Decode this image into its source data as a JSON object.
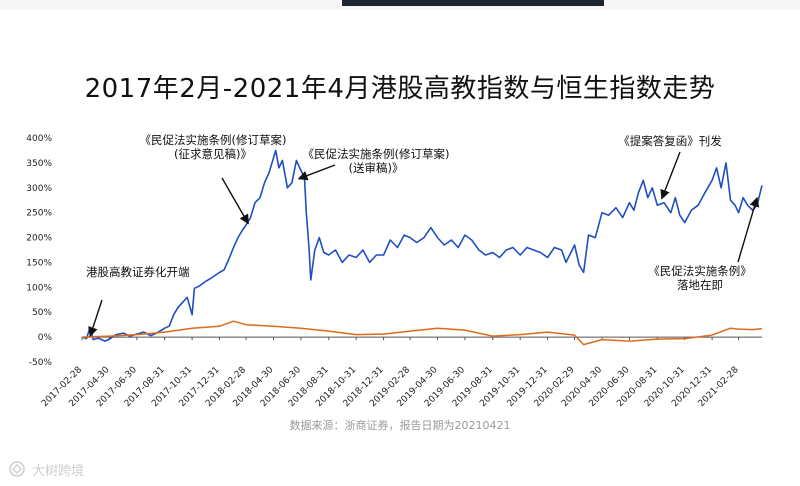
{
  "title": "2017年2月-2021年4月港股高教指数与恒生指数走势",
  "source": "数据来源：浙商证券，报告日期为20210421",
  "watermark": {
    "text": "大树跨境",
    "icon": "watermark-logo-icon"
  },
  "chart_data": {
    "type": "line",
    "title": "2017年2月-2021年4月港股高教指数与恒生指数走势",
    "xlabel": "",
    "ylabel": "",
    "ylim": [
      -50,
      400
    ],
    "yticks": [
      "400%",
      "350%",
      "300%",
      "250%",
      "200%",
      "150%",
      "100%",
      "50%",
      "0%",
      "-50%"
    ],
    "ytick_values": [
      400,
      350,
      300,
      250,
      200,
      150,
      100,
      50,
      0,
      -50
    ],
    "x_tick_labels": [
      "2017-02-28",
      "2017-04-30",
      "2017-06-30",
      "2017-08-31",
      "2017-10-31",
      "2017-12-31",
      "2018-02-28",
      "2018-04-30",
      "2018-06-30",
      "2018-08-31",
      "2018-10-31",
      "2018-12-31",
      "2019-02-28",
      "2019-04-30",
      "2019-06-30",
      "2019-08-31",
      "2019-10-31",
      "2019-12-31",
      "2020-02-29",
      "2020-04-30",
      "2020-06-30",
      "2020-08-31",
      "2020-10-31",
      "2020-12-31",
      "2021-02-28"
    ],
    "grid": false,
    "legend": "none",
    "series": [
      {
        "color": "#1f4fbf",
        "points": [
          [
            "2017-02-28",
            0
          ],
          [
            "2017-03-10",
            -3
          ],
          [
            "2017-03-18",
            20
          ],
          [
            "2017-03-25",
            -5
          ],
          [
            "2017-04-05",
            -2
          ],
          [
            "2017-04-20",
            -8
          ],
          [
            "2017-04-30",
            -4
          ],
          [
            "2017-05-15",
            5
          ],
          [
            "2017-05-31",
            8
          ],
          [
            "2017-06-15",
            2
          ],
          [
            "2017-06-30",
            6
          ],
          [
            "2017-07-15",
            10
          ],
          [
            "2017-07-31",
            3
          ],
          [
            "2017-08-15",
            9
          ],
          [
            "2017-08-31",
            18
          ],
          [
            "2017-09-10",
            22
          ],
          [
            "2017-09-20",
            45
          ],
          [
            "2017-09-30",
            60
          ],
          [
            "2017-10-10",
            70
          ],
          [
            "2017-10-20",
            80
          ],
          [
            "2017-10-31",
            45
          ],
          [
            "2017-11-05",
            98
          ],
          [
            "2017-11-15",
            102
          ],
          [
            "2017-11-30",
            112
          ],
          [
            "2017-12-15",
            120
          ],
          [
            "2017-12-31",
            130
          ],
          [
            "2018-01-10",
            135
          ],
          [
            "2018-01-20",
            155
          ],
          [
            "2018-01-31",
            180
          ],
          [
            "2018-02-10",
            200
          ],
          [
            "2018-02-20",
            215
          ],
          [
            "2018-02-28",
            225
          ],
          [
            "2018-03-10",
            240
          ],
          [
            "2018-03-20",
            270
          ],
          [
            "2018-03-31",
            280
          ],
          [
            "2018-04-10",
            310
          ],
          [
            "2018-04-20",
            330
          ],
          [
            "2018-04-30",
            360
          ],
          [
            "2018-05-05",
            375
          ],
          [
            "2018-05-12",
            340
          ],
          [
            "2018-05-20",
            355
          ],
          [
            "2018-05-31",
            300
          ],
          [
            "2018-06-10",
            310
          ],
          [
            "2018-06-20",
            355
          ],
          [
            "2018-06-30",
            335
          ],
          [
            "2018-07-08",
            320
          ],
          [
            "2018-07-12",
            250
          ],
          [
            "2018-07-18",
            180
          ],
          [
            "2018-07-22",
            115
          ],
          [
            "2018-07-31",
            175
          ],
          [
            "2018-08-10",
            200
          ],
          [
            "2018-08-20",
            170
          ],
          [
            "2018-08-31",
            165
          ],
          [
            "2018-09-15",
            175
          ],
          [
            "2018-09-30",
            150
          ],
          [
            "2018-10-15",
            165
          ],
          [
            "2018-10-31",
            160
          ],
          [
            "2018-11-15",
            175
          ],
          [
            "2018-11-30",
            150
          ],
          [
            "2018-12-15",
            165
          ],
          [
            "2018-12-31",
            165
          ],
          [
            "2019-01-15",
            195
          ],
          [
            "2019-01-31",
            180
          ],
          [
            "2019-02-15",
            205
          ],
          [
            "2019-02-28",
            200
          ],
          [
            "2019-03-15",
            190
          ],
          [
            "2019-03-31",
            200
          ],
          [
            "2019-04-15",
            220
          ],
          [
            "2019-04-30",
            200
          ],
          [
            "2019-05-15",
            185
          ],
          [
            "2019-05-31",
            195
          ],
          [
            "2019-06-15",
            180
          ],
          [
            "2019-06-30",
            205
          ],
          [
            "2019-07-15",
            195
          ],
          [
            "2019-07-31",
            175
          ],
          [
            "2019-08-15",
            165
          ],
          [
            "2019-08-31",
            170
          ],
          [
            "2019-09-15",
            160
          ],
          [
            "2019-09-30",
            175
          ],
          [
            "2019-10-15",
            180
          ],
          [
            "2019-10-31",
            165
          ],
          [
            "2019-11-15",
            180
          ],
          [
            "2019-11-30",
            175
          ],
          [
            "2019-12-15",
            170
          ],
          [
            "2019-12-31",
            160
          ],
          [
            "2020-01-15",
            180
          ],
          [
            "2020-01-31",
            175
          ],
          [
            "2020-02-10",
            150
          ],
          [
            "2020-02-29",
            185
          ],
          [
            "2020-03-10",
            145
          ],
          [
            "2020-03-20",
            130
          ],
          [
            "2020-03-31",
            205
          ],
          [
            "2020-04-15",
            200
          ],
          [
            "2020-04-30",
            250
          ],
          [
            "2020-05-15",
            245
          ],
          [
            "2020-05-31",
            260
          ],
          [
            "2020-06-15",
            240
          ],
          [
            "2020-06-30",
            270
          ],
          [
            "2020-07-10",
            255
          ],
          [
            "2020-07-20",
            290
          ],
          [
            "2020-07-31",
            315
          ],
          [
            "2020-08-10",
            280
          ],
          [
            "2020-08-20",
            300
          ],
          [
            "2020-08-31",
            265
          ],
          [
            "2020-09-15",
            270
          ],
          [
            "2020-09-30",
            250
          ],
          [
            "2020-10-10",
            280
          ],
          [
            "2020-10-20",
            245
          ],
          [
            "2020-10-31",
            230
          ],
          [
            "2020-11-15",
            255
          ],
          [
            "2020-11-30",
            265
          ],
          [
            "2020-12-15",
            290
          ],
          [
            "2020-12-31",
            315
          ],
          [
            "2021-01-10",
            340
          ],
          [
            "2021-01-20",
            300
          ],
          [
            "2021-01-31",
            350
          ],
          [
            "2021-02-10",
            275
          ],
          [
            "2021-02-20",
            265
          ],
          [
            "2021-02-28",
            250
          ],
          [
            "2021-03-10",
            280
          ],
          [
            "2021-03-20",
            265
          ],
          [
            "2021-03-31",
            255
          ],
          [
            "2021-04-10",
            265
          ],
          [
            "2021-04-21",
            305
          ]
        ]
      },
      {
        "color": "#e06a1c",
        "points": [
          [
            "2017-02-28",
            0
          ],
          [
            "2017-04-30",
            2
          ],
          [
            "2017-06-30",
            5
          ],
          [
            "2017-08-31",
            10
          ],
          [
            "2017-10-31",
            18
          ],
          [
            "2017-12-31",
            22
          ],
          [
            "2018-01-31",
            32
          ],
          [
            "2018-02-28",
            25
          ],
          [
            "2018-04-30",
            22
          ],
          [
            "2018-06-30",
            18
          ],
          [
            "2018-08-31",
            12
          ],
          [
            "2018-10-31",
            5
          ],
          [
            "2018-12-31",
            6
          ],
          [
            "2019-02-28",
            12
          ],
          [
            "2019-04-30",
            18
          ],
          [
            "2019-06-30",
            14
          ],
          [
            "2019-08-31",
            2
          ],
          [
            "2019-10-31",
            5
          ],
          [
            "2019-12-31",
            10
          ],
          [
            "2020-02-29",
            4
          ],
          [
            "2020-03-20",
            -15
          ],
          [
            "2020-04-30",
            -5
          ],
          [
            "2020-06-30",
            -8
          ],
          [
            "2020-08-31",
            -4
          ],
          [
            "2020-10-31",
            -3
          ],
          [
            "2020-12-31",
            4
          ],
          [
            "2021-02-10",
            18
          ],
          [
            "2021-02-28",
            16
          ],
          [
            "2021-03-31",
            15
          ],
          [
            "2021-04-21",
            17
          ]
        ]
      }
    ],
    "annotations": [
      {
        "lines": [
          "港股高教证券化开端"
        ],
        "target": [
          "2017-03-18",
          2
        ]
      },
      {
        "lines": [
          "《民促法实施条例(修订草案)",
          "(征求意见稿)》"
        ],
        "target": [
          "2018-03-05",
          228
        ]
      },
      {
        "lines": [
          "《民促法实施条例(修订草案)",
          "(送审稿)》"
        ],
        "target": [
          "2018-06-25",
          318
        ]
      },
      {
        "lines": [
          "《提案答复函》刊发"
        ],
        "target": [
          "2020-09-10",
          278
        ]
      },
      {
        "lines": [
          "《民促法实施条例》",
          "落地在即"
        ],
        "target": [
          "2021-04-10",
          280
        ]
      }
    ]
  }
}
